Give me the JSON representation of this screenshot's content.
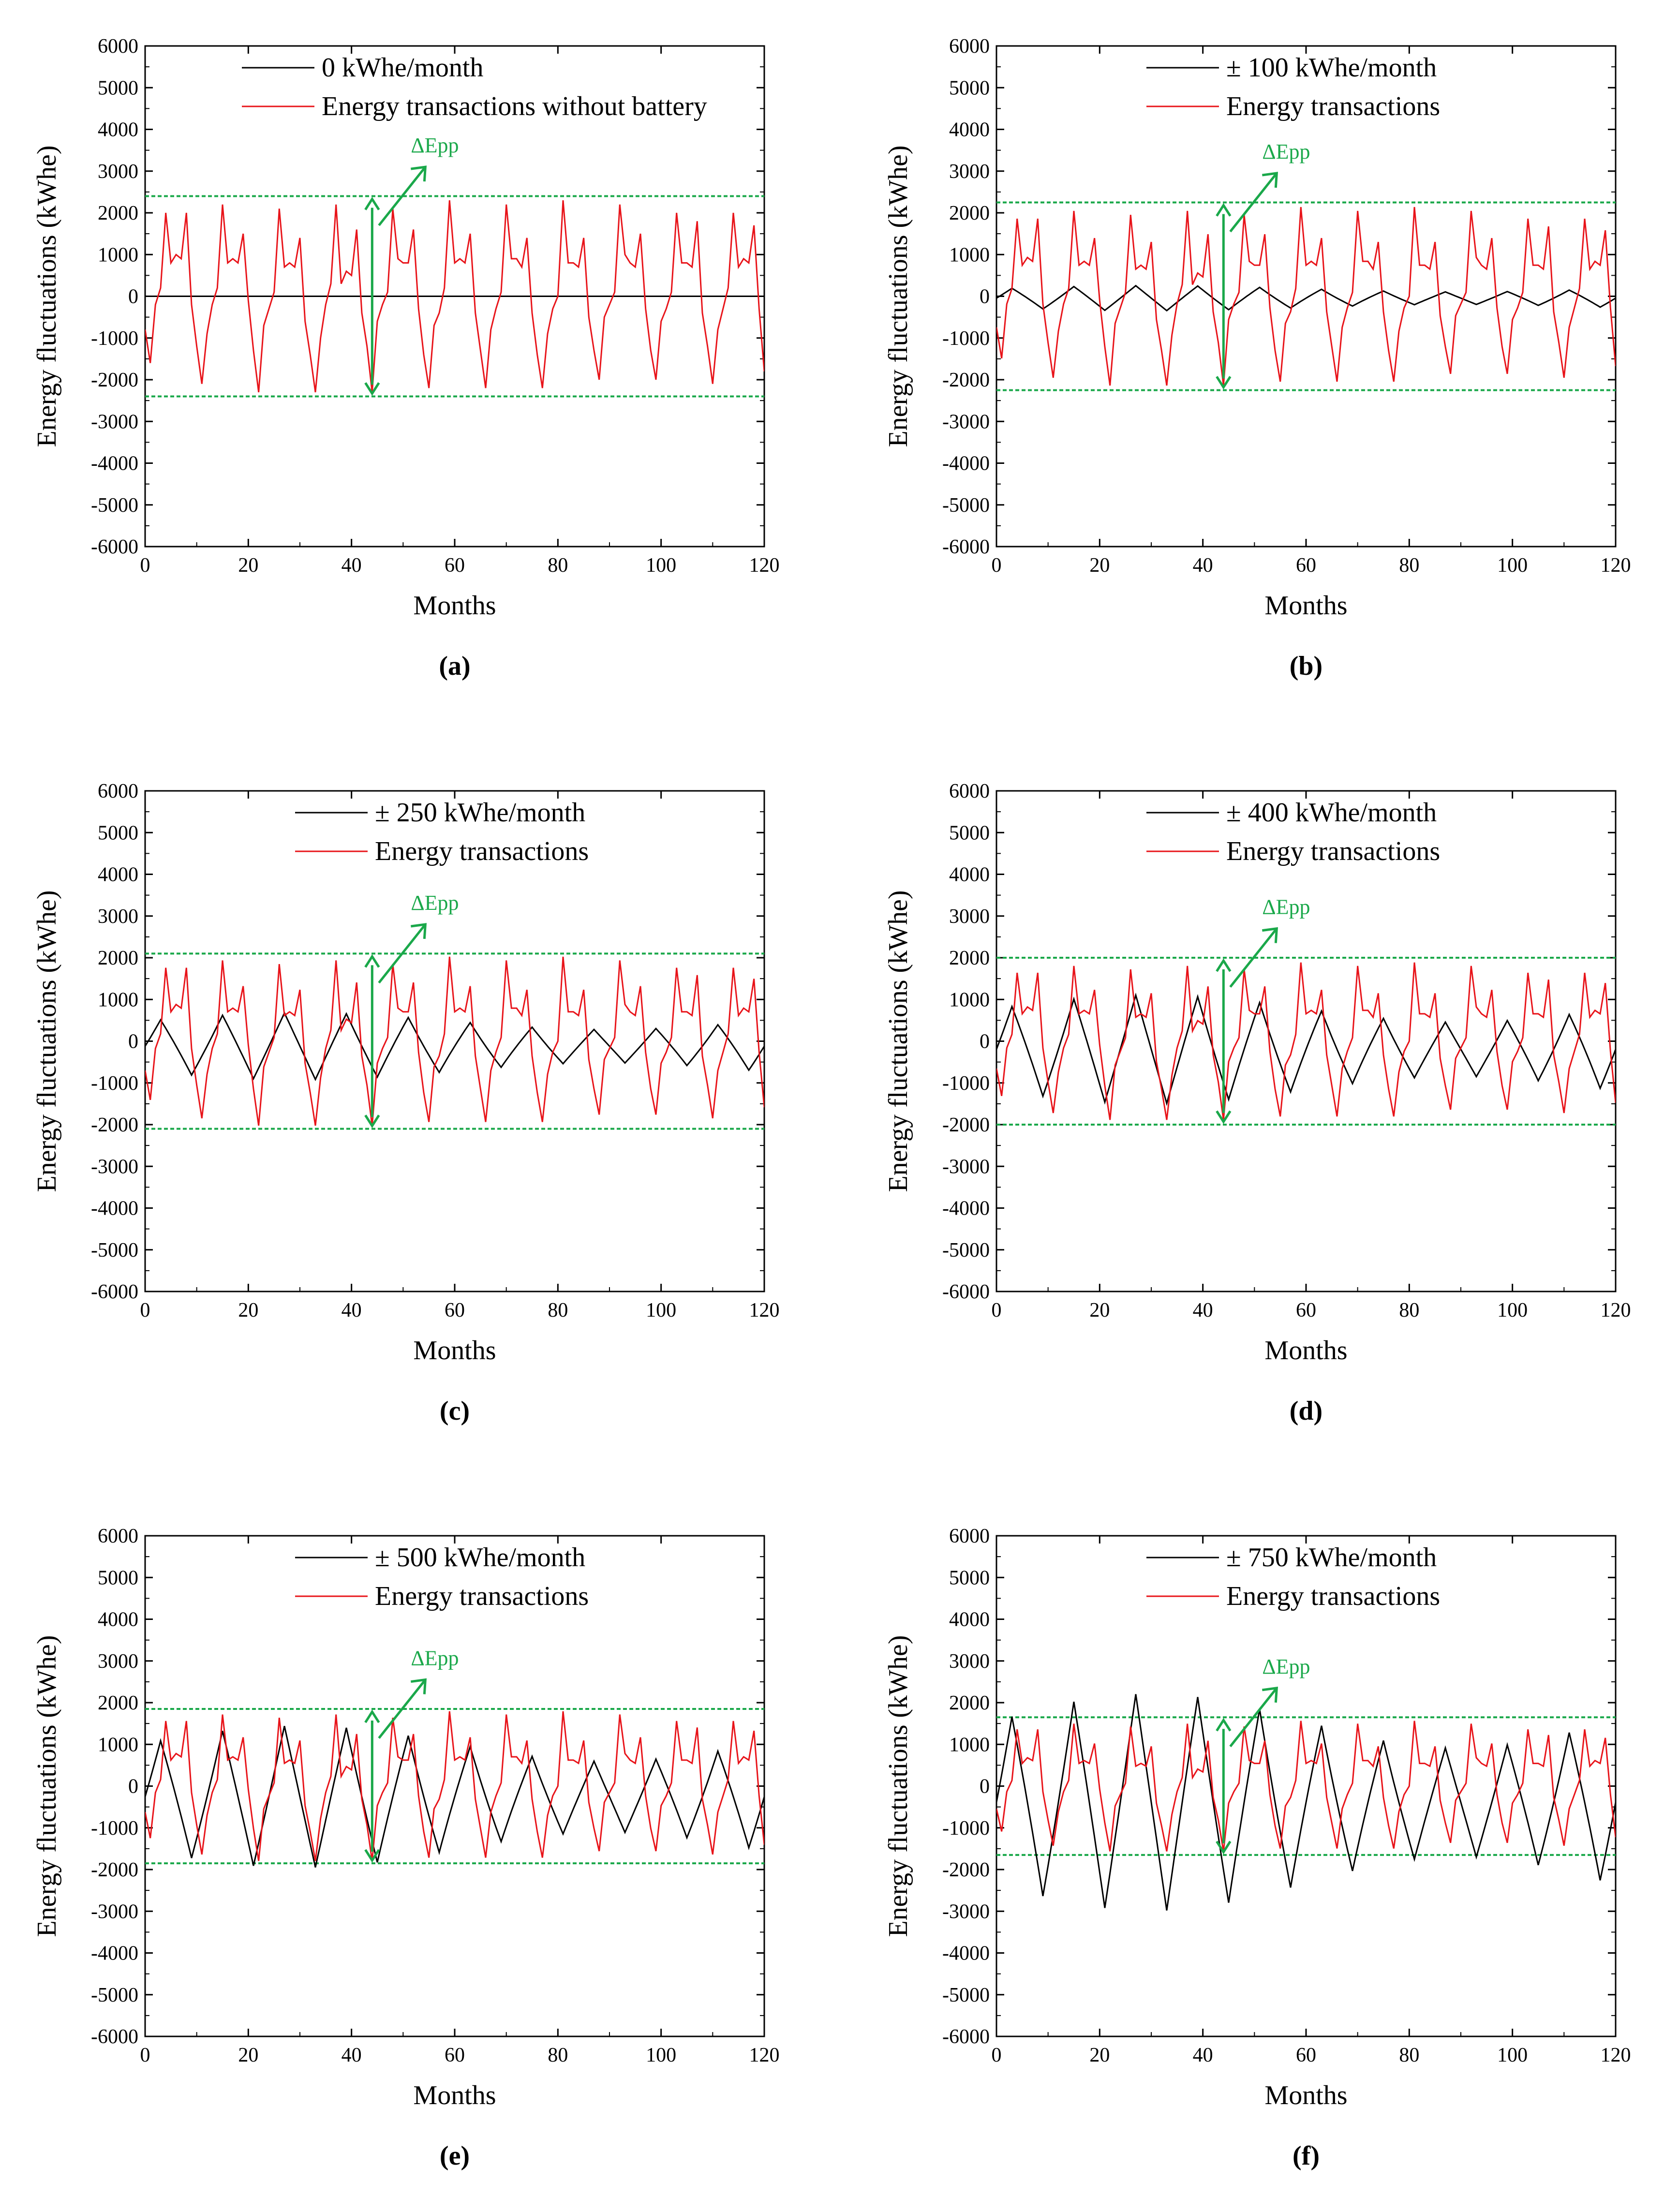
{
  "colors": {
    "battery_line": "#000000",
    "transactions_line": "#e8141a",
    "envelope": "#1aa84a",
    "axis": "#000000"
  },
  "chart_data": [
    {
      "type": "line",
      "panel_label": "(a)",
      "xlabel": "Months",
      "ylabel": "Energy fluctuations (kWhe)",
      "xlim": [
        0,
        120
      ],
      "ylim": [
        -6000,
        6000
      ],
      "x_ticks": [
        0,
        20,
        40,
        60,
        80,
        100,
        120
      ],
      "y_ticks": [
        6000,
        5000,
        4000,
        3000,
        2000,
        1000,
        0,
        -1000,
        -2000,
        -3000,
        -4000,
        -5000,
        -6000
      ],
      "legend": [
        "0 kWhe/month",
        "Energy transactions without battery"
      ],
      "annotation": "ΔEpp",
      "envelope": [
        2400,
        -2400
      ],
      "battery_amplitude": 0,
      "transaction_scale": 1.0,
      "battery_series": {
        "name": "0 kWhe/month",
        "x": [
          0,
          120
        ],
        "values": [
          0,
          0
        ]
      },
      "series": [
        {
          "name": "Energy transactions without battery",
          "x": [
            0,
            1,
            2,
            3,
            4,
            5,
            6,
            7,
            8,
            9,
            10,
            11,
            12,
            13,
            14,
            15,
            16,
            17,
            18,
            19,
            20,
            21,
            22,
            23,
            24,
            25,
            26,
            27,
            28,
            29,
            30,
            31,
            32,
            33,
            34,
            35,
            36,
            37,
            38,
            39,
            40,
            41,
            42,
            43,
            44,
            45,
            46,
            47,
            48,
            49,
            50,
            51,
            52,
            53,
            54,
            55,
            56,
            57,
            58,
            59,
            60,
            61,
            62,
            63,
            64,
            65,
            66,
            67,
            68,
            69,
            70,
            71,
            72,
            73,
            74,
            75,
            76,
            77,
            78,
            79,
            80,
            81,
            82,
            83,
            84,
            85,
            86,
            87,
            88,
            89,
            90,
            91,
            92,
            93,
            94,
            95,
            96,
            97,
            98,
            99,
            100,
            101,
            102,
            103,
            104,
            105,
            106,
            107,
            108,
            109,
            110,
            111,
            112,
            113,
            114,
            115,
            116,
            117,
            118,
            119,
            120
          ],
          "values": [
            -800,
            -1600,
            -200,
            200,
            2000,
            800,
            1000,
            900,
            2000,
            -200,
            -1200,
            -2100,
            -900,
            -200,
            200,
            2200,
            800,
            900,
            800,
            1500,
            -100,
            -1300,
            -2300,
            -700,
            -300,
            100,
            2100,
            700,
            800,
            700,
            1400,
            -600,
            -1400,
            -2300,
            -1000,
            -200,
            300,
            2200,
            300,
            600,
            500,
            1600,
            -400,
            -1200,
            -2300,
            -600,
            -200,
            100,
            2100,
            900,
            800,
            800,
            1600,
            -300,
            -1400,
            -2200,
            -700,
            -400,
            200,
            2300,
            800,
            900,
            800,
            1500,
            -400,
            -1300,
            -2200,
            -800,
            -300,
            100,
            2200,
            900,
            900,
            700,
            1400,
            -400,
            -1400,
            -2200,
            -900,
            -300,
            0,
            2300,
            800,
            800,
            700,
            1400,
            -500,
            -1300,
            -2000,
            -500,
            -200,
            100,
            2200,
            1000,
            800,
            700,
            1500,
            -300,
            -1300,
            -2000,
            -600,
            -300,
            100,
            2000,
            800,
            800,
            700,
            1800,
            -400,
            -1200,
            -2100,
            -800,
            -300,
            200,
            2000,
            700,
            900,
            800,
            1700,
            -300,
            -1800
          ]
        }
      ]
    },
    {
      "type": "line",
      "panel_label": "(b)",
      "xlabel": "Months",
      "ylabel": "Energy fluctuations (kWhe)",
      "xlim": [
        0,
        120
      ],
      "ylim": [
        -6000,
        6000
      ],
      "x_ticks": [
        0,
        20,
        40,
        60,
        80,
        100,
        120
      ],
      "y_ticks": [
        6000,
        5000,
        4000,
        3000,
        2000,
        1000,
        0,
        -1000,
        -2000,
        -3000,
        -4000,
        -5000,
        -6000
      ],
      "legend": [
        "± 100 kWhe/month",
        "Energy transactions"
      ],
      "annotation": "ΔEpp",
      "envelope": [
        2250,
        -2250
      ],
      "battery_amplitude": 300,
      "transaction_scale": 0.93
    },
    {
      "type": "line",
      "panel_label": "(c)",
      "xlabel": "Months",
      "ylabel": "Energy fluctuations (kWhe)",
      "xlim": [
        0,
        120
      ],
      "ylim": [
        -6000,
        6000
      ],
      "x_ticks": [
        0,
        20,
        40,
        60,
        80,
        100,
        120
      ],
      "y_ticks": [
        6000,
        5000,
        4000,
        3000,
        2000,
        1000,
        0,
        -1000,
        -2000,
        -3000,
        -4000,
        -5000,
        -6000
      ],
      "legend": [
        "± 250 kWhe/month",
        "Energy transactions"
      ],
      "annotation": "ΔEpp",
      "envelope": [
        2100,
        -2100
      ],
      "battery_amplitude": 800,
      "transaction_scale": 0.88
    },
    {
      "type": "line",
      "panel_label": "(d)",
      "xlabel": "Months",
      "ylabel": "Energy fluctuations (kWhe)",
      "xlim": [
        0,
        120
      ],
      "ylim": [
        -6000,
        6000
      ],
      "x_ticks": [
        0,
        20,
        40,
        60,
        80,
        100,
        120
      ],
      "y_ticks": [
        6000,
        5000,
        4000,
        3000,
        2000,
        1000,
        0,
        -1000,
        -2000,
        -3000,
        -4000,
        -5000,
        -6000
      ],
      "legend": [
        "± 400 kWhe/month",
        "Energy transactions"
      ],
      "annotation": "ΔEpp",
      "envelope": [
        2000,
        -2000
      ],
      "battery_amplitude": 1300,
      "transaction_scale": 0.82
    },
    {
      "type": "line",
      "panel_label": "(e)",
      "xlabel": "Months",
      "ylabel": "Energy fluctuations (kWhe)",
      "xlim": [
        0,
        120
      ],
      "ylim": [
        -6000,
        6000
      ],
      "x_ticks": [
        0,
        20,
        40,
        60,
        80,
        100,
        120
      ],
      "y_ticks": [
        6000,
        5000,
        4000,
        3000,
        2000,
        1000,
        0,
        -1000,
        -2000,
        -3000,
        -4000,
        -5000,
        -6000
      ],
      "legend": [
        "± 500 kWhe/month",
        "Energy transactions"
      ],
      "annotation": "ΔEpp",
      "envelope": [
        1850,
        -1850
      ],
      "battery_amplitude": 1700,
      "transaction_scale": 0.78
    },
    {
      "type": "line",
      "panel_label": "(f)",
      "xlabel": "Months",
      "ylabel": "Energy fluctuations (kWhe)",
      "xlim": [
        0,
        120
      ],
      "ylim": [
        -6000,
        6000
      ],
      "x_ticks": [
        0,
        20,
        40,
        60,
        80,
        100,
        120
      ],
      "y_ticks": [
        6000,
        5000,
        4000,
        3000,
        2000,
        1000,
        0,
        -1000,
        -2000,
        -3000,
        -4000,
        -5000,
        -6000
      ],
      "legend": [
        "± 750 kWhe/month",
        "Energy transactions"
      ],
      "annotation": "ΔEpp",
      "envelope": [
        1650,
        -1650
      ],
      "battery_amplitude": 2600,
      "transaction_scale": 0.68
    }
  ]
}
